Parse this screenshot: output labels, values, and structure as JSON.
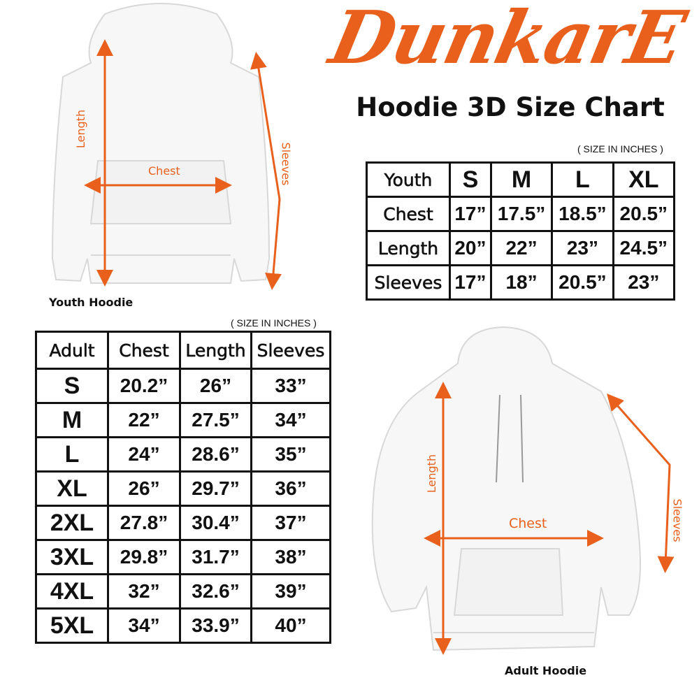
{
  "brand": {
    "logo_text": "DunkarE",
    "color": "#e8601c"
  },
  "title": "Hoodie 3D Size Chart",
  "youth": {
    "unit_note": "( SIZE IN INCHES )",
    "caption": "Youth Hoodie",
    "labels": {
      "length": "Length",
      "chest": "Chest",
      "sleeves": "Sleeves"
    },
    "table": {
      "header": [
        "Youth",
        "S",
        "M",
        "L",
        "XL"
      ],
      "rows": [
        [
          "Chest",
          "17”",
          "17.5”",
          "18.5”",
          "20.5”"
        ],
        [
          "Length",
          "20”",
          "22”",
          "23”",
          "24.5”"
        ],
        [
          "Sleeves",
          "17”",
          "18”",
          "20.5”",
          "23”"
        ]
      ]
    }
  },
  "adult": {
    "unit_note": "( SIZE IN INCHES )",
    "caption": "Adult Hoodie",
    "labels": {
      "length": "Length",
      "chest": "Chest",
      "sleeves": "Sleeves"
    },
    "table": {
      "header": [
        "Adult",
        "Chest",
        "Length",
        "Sleeves"
      ],
      "rows": [
        [
          "S",
          "20.2”",
          "26”",
          "33”"
        ],
        [
          "M",
          "22”",
          "27.5”",
          "34”"
        ],
        [
          "L",
          "24”",
          "28.6”",
          "35”"
        ],
        [
          "XL",
          "26”",
          "29.7”",
          "36”"
        ],
        [
          "2XL",
          "27.8”",
          "30.4”",
          "37”"
        ],
        [
          "3XL",
          "29.8”",
          "31.7”",
          "38”"
        ],
        [
          "4XL",
          "32”",
          "32.6”",
          "39”"
        ],
        [
          "5XL",
          "34”",
          "33.9”",
          "40”"
        ]
      ]
    }
  }
}
